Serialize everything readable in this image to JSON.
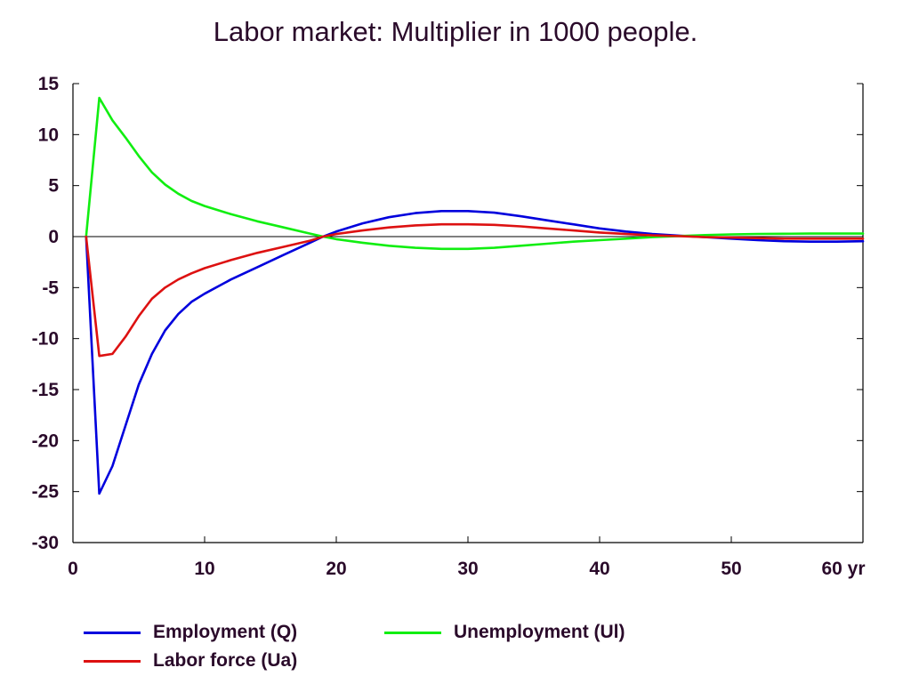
{
  "chart_data": {
    "type": "line",
    "title": "Labor market: Multiplier in 1000 people.",
    "xlim": [
      0,
      60
    ],
    "ylim": [
      -30,
      15
    ],
    "x_ticks": [
      0,
      10,
      20,
      30,
      40,
      50,
      60
    ],
    "x_tick_labels": [
      "0",
      "10",
      "20",
      "30",
      "40",
      "50",
      "60 yr"
    ],
    "y_ticks": [
      15,
      10,
      5,
      0,
      -5,
      -10,
      -15,
      -20,
      -25,
      -30
    ],
    "y_tick_labels": [
      "15",
      "10",
      "5",
      "0",
      "-5",
      "-10",
      "-15",
      "-20",
      "-25",
      "-30"
    ],
    "grid": false,
    "legend_position": "bottom",
    "series": [
      {
        "name": "Employment (Q)",
        "color": "#0000dd",
        "x": [
          1,
          2,
          3,
          4,
          5,
          6,
          7,
          8,
          9,
          10,
          12,
          14,
          16,
          18,
          19,
          20,
          22,
          24,
          26,
          28,
          30,
          32,
          34,
          36,
          38,
          40,
          42,
          44,
          46,
          48,
          50,
          52,
          54,
          56,
          58,
          60
        ],
        "y": [
          0,
          -25.2,
          -22.5,
          -18.5,
          -14.5,
          -11.5,
          -9.2,
          -7.6,
          -6.4,
          -5.6,
          -4.2,
          -3.0,
          -1.8,
          -0.6,
          0,
          0.5,
          1.3,
          1.9,
          2.3,
          2.5,
          2.5,
          2.35,
          2.0,
          1.6,
          1.2,
          0.8,
          0.5,
          0.25,
          0.1,
          -0.05,
          -0.2,
          -0.35,
          -0.45,
          -0.5,
          -0.5,
          -0.45
        ]
      },
      {
        "name": "Unemployment (Ul)",
        "color": "#11ee11",
        "x": [
          1,
          2,
          3,
          4,
          5,
          6,
          7,
          8,
          9,
          10,
          12,
          14,
          16,
          18,
          19,
          20,
          22,
          24,
          26,
          28,
          30,
          32,
          34,
          36,
          38,
          40,
          42,
          44,
          46,
          48,
          50,
          52,
          54,
          56,
          58,
          60
        ],
        "y": [
          0,
          13.6,
          11.4,
          9.7,
          7.9,
          6.3,
          5.1,
          4.2,
          3.5,
          3.0,
          2.2,
          1.5,
          0.9,
          0.3,
          0,
          -0.25,
          -0.6,
          -0.9,
          -1.1,
          -1.2,
          -1.2,
          -1.1,
          -0.9,
          -0.7,
          -0.5,
          -0.35,
          -0.2,
          -0.05,
          0.05,
          0.15,
          0.22,
          0.26,
          0.28,
          0.3,
          0.3,
          0.3
        ]
      },
      {
        "name": "Labor force (Ua)",
        "color": "#dd1111",
        "x": [
          1,
          2,
          3,
          4,
          5,
          6,
          7,
          8,
          9,
          10,
          12,
          14,
          16,
          18,
          19,
          20,
          22,
          24,
          26,
          28,
          30,
          32,
          34,
          36,
          38,
          40,
          42,
          44,
          46,
          48,
          50,
          52,
          54,
          56,
          58,
          60
        ],
        "y": [
          0,
          -11.7,
          -11.5,
          -9.8,
          -7.8,
          -6.1,
          -5.0,
          -4.2,
          -3.6,
          -3.1,
          -2.3,
          -1.6,
          -1.0,
          -0.4,
          0,
          0.25,
          0.6,
          0.9,
          1.1,
          1.2,
          1.2,
          1.15,
          1.0,
          0.8,
          0.6,
          0.4,
          0.25,
          0.12,
          0.05,
          -0.05,
          -0.1,
          -0.15,
          -0.2,
          -0.2,
          -0.2,
          -0.2
        ]
      }
    ]
  }
}
